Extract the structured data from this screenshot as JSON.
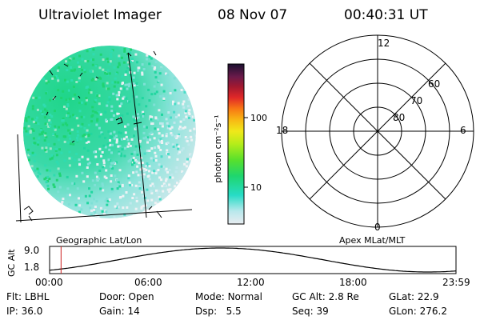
{
  "header": {
    "instrument": "Ultraviolet Imager",
    "date": "08 Nov 07",
    "time": "00:40:31 UT"
  },
  "imager": {
    "label": "Geographic Lat/Lon"
  },
  "colorbar": {
    "unit": "photon cm⁻²s⁻¹",
    "tick_labels": [
      "100",
      "10"
    ]
  },
  "polar_plot": {
    "label": "Apex MLat/MLT",
    "mlt_labels": {
      "top": "12",
      "left": "18",
      "right": "6",
      "bottom": "0"
    },
    "lat_labels": [
      "60",
      "70",
      "80"
    ]
  },
  "altitude_plot": {
    "ylabel": "GC Alt",
    "ytick_labels": [
      "9.0",
      "1.8"
    ],
    "xtick_labels": [
      "00:00",
      "06:00",
      "12:00",
      "18:00",
      "23:59"
    ],
    "current_time_fraction": 0.0282
  },
  "footer": {
    "row1": [
      {
        "k": "Flt:",
        "v": "LBHL"
      },
      {
        "k": "Door:",
        "v": "Open"
      },
      {
        "k": "Mode:",
        "v": "Normal"
      },
      {
        "k": "GC Alt:",
        "v": "2.8 Re"
      },
      {
        "k": "GLat:",
        "v": "22.9"
      }
    ],
    "row2": [
      {
        "k": "IP:",
        "v": "36.0"
      },
      {
        "k": "Gain:",
        "v": "14"
      },
      {
        "k": "Dsp:",
        "v": "5.5"
      },
      {
        "k": "Seq:",
        "v": "39"
      },
      {
        "k": "GLon:",
        "v": "276.2"
      }
    ]
  },
  "colors": {
    "background": "#ffffff",
    "emission_high": "#22d88a",
    "emission_mid": "#20d8c8",
    "emission_low": "#d8e8ee",
    "time_marker": "#cc2222"
  }
}
